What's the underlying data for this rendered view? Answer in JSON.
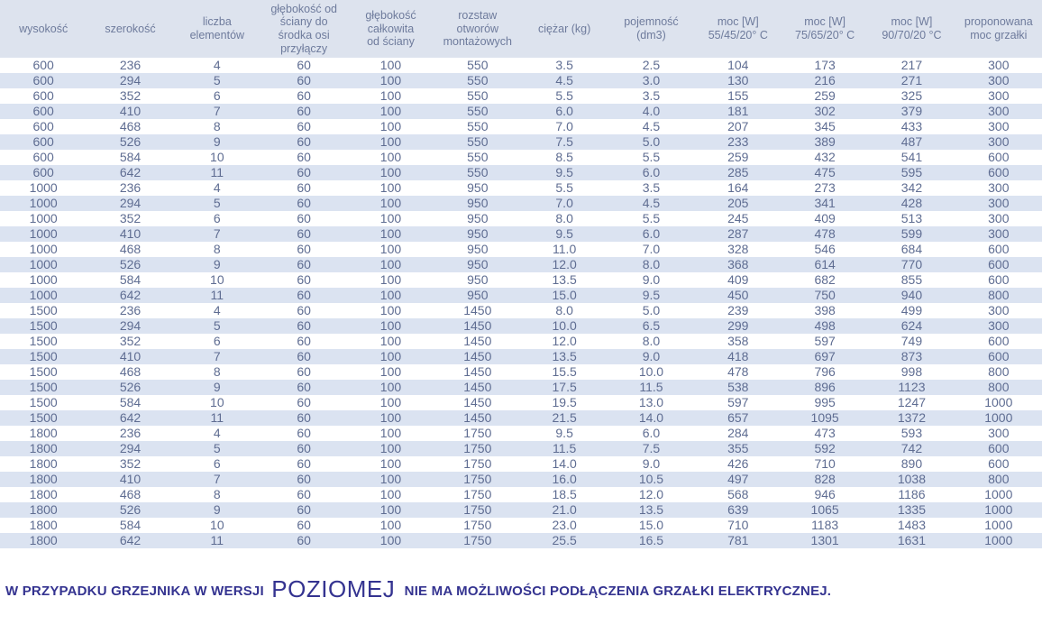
{
  "table": {
    "columns": [
      "wysokość",
      "szerokość",
      "liczba\nelementów",
      "głębokość od\nściany do\nśrodka osi\nprzyłączy",
      "głębokość\ncałkowita\nod ściany",
      "rozstaw\notworów\nmontażowych",
      "ciężar (kg)",
      "pojemność\n(dm3)",
      "moc [W]\n55/45/20° C",
      "moc [W]\n75/65/20° C",
      "moc [W]\n90/70/20 °C",
      "proponowana\nmoc grzałki"
    ],
    "rows": [
      [
        "600",
        "236",
        "4",
        "60",
        "100",
        "550",
        "3.5",
        "2.5",
        "104",
        "173",
        "217",
        "300"
      ],
      [
        "600",
        "294",
        "5",
        "60",
        "100",
        "550",
        "4.5",
        "3.0",
        "130",
        "216",
        "271",
        "300"
      ],
      [
        "600",
        "352",
        "6",
        "60",
        "100",
        "550",
        "5.5",
        "3.5",
        "155",
        "259",
        "325",
        "300"
      ],
      [
        "600",
        "410",
        "7",
        "60",
        "100",
        "550",
        "6.0",
        "4.0",
        "181",
        "302",
        "379",
        "300"
      ],
      [
        "600",
        "468",
        "8",
        "60",
        "100",
        "550",
        "7.0",
        "4.5",
        "207",
        "345",
        "433",
        "300"
      ],
      [
        "600",
        "526",
        "9",
        "60",
        "100",
        "550",
        "7.5",
        "5.0",
        "233",
        "389",
        "487",
        "300"
      ],
      [
        "600",
        "584",
        "10",
        "60",
        "100",
        "550",
        "8.5",
        "5.5",
        "259",
        "432",
        "541",
        "600"
      ],
      [
        "600",
        "642",
        "11",
        "60",
        "100",
        "550",
        "9.5",
        "6.0",
        "285",
        "475",
        "595",
        "600"
      ],
      [
        "1000",
        "236",
        "4",
        "60",
        "100",
        "950",
        "5.5",
        "3.5",
        "164",
        "273",
        "342",
        "300"
      ],
      [
        "1000",
        "294",
        "5",
        "60",
        "100",
        "950",
        "7.0",
        "4.5",
        "205",
        "341",
        "428",
        "300"
      ],
      [
        "1000",
        "352",
        "6",
        "60",
        "100",
        "950",
        "8.0",
        "5.5",
        "245",
        "409",
        "513",
        "300"
      ],
      [
        "1000",
        "410",
        "7",
        "60",
        "100",
        "950",
        "9.5",
        "6.0",
        "287",
        "478",
        "599",
        "300"
      ],
      [
        "1000",
        "468",
        "8",
        "60",
        "100",
        "950",
        "11.0",
        "7.0",
        "328",
        "546",
        "684",
        "600"
      ],
      [
        "1000",
        "526",
        "9",
        "60",
        "100",
        "950",
        "12.0",
        "8.0",
        "368",
        "614",
        "770",
        "600"
      ],
      [
        "1000",
        "584",
        "10",
        "60",
        "100",
        "950",
        "13.5",
        "9.0",
        "409",
        "682",
        "855",
        "600"
      ],
      [
        "1000",
        "642",
        "11",
        "60",
        "100",
        "950",
        "15.0",
        "9.5",
        "450",
        "750",
        "940",
        "800"
      ],
      [
        "1500",
        "236",
        "4",
        "60",
        "100",
        "1450",
        "8.0",
        "5.0",
        "239",
        "398",
        "499",
        "300"
      ],
      [
        "1500",
        "294",
        "5",
        "60",
        "100",
        "1450",
        "10.0",
        "6.5",
        "299",
        "498",
        "624",
        "300"
      ],
      [
        "1500",
        "352",
        "6",
        "60",
        "100",
        "1450",
        "12.0",
        "8.0",
        "358",
        "597",
        "749",
        "600"
      ],
      [
        "1500",
        "410",
        "7",
        "60",
        "100",
        "1450",
        "13.5",
        "9.0",
        "418",
        "697",
        "873",
        "600"
      ],
      [
        "1500",
        "468",
        "8",
        "60",
        "100",
        "1450",
        "15.5",
        "10.0",
        "478",
        "796",
        "998",
        "800"
      ],
      [
        "1500",
        "526",
        "9",
        "60",
        "100",
        "1450",
        "17.5",
        "11.5",
        "538",
        "896",
        "1123",
        "800"
      ],
      [
        "1500",
        "584",
        "10",
        "60",
        "100",
        "1450",
        "19.5",
        "13.0",
        "597",
        "995",
        "1247",
        "1000"
      ],
      [
        "1500",
        "642",
        "11",
        "60",
        "100",
        "1450",
        "21.5",
        "14.0",
        "657",
        "1095",
        "1372",
        "1000"
      ],
      [
        "1800",
        "236",
        "4",
        "60",
        "100",
        "1750",
        "9.5",
        "6.0",
        "284",
        "473",
        "593",
        "300"
      ],
      [
        "1800",
        "294",
        "5",
        "60",
        "100",
        "1750",
        "11.5",
        "7.5",
        "355",
        "592",
        "742",
        "600"
      ],
      [
        "1800",
        "352",
        "6",
        "60",
        "100",
        "1750",
        "14.0",
        "9.0",
        "426",
        "710",
        "890",
        "600"
      ],
      [
        "1800",
        "410",
        "7",
        "60",
        "100",
        "1750",
        "16.0",
        "10.5",
        "497",
        "828",
        "1038",
        "800"
      ],
      [
        "1800",
        "468",
        "8",
        "60",
        "100",
        "1750",
        "18.5",
        "12.0",
        "568",
        "946",
        "1186",
        "1000"
      ],
      [
        "1800",
        "526",
        "9",
        "60",
        "100",
        "1750",
        "21.0",
        "13.5",
        "639",
        "1065",
        "1335",
        "1000"
      ],
      [
        "1800",
        "584",
        "10",
        "60",
        "100",
        "1750",
        "23.0",
        "15.0",
        "710",
        "1183",
        "1483",
        "1000"
      ],
      [
        "1800",
        "642",
        "11",
        "60",
        "100",
        "1750",
        "25.5",
        "16.5",
        "781",
        "1301",
        "1631",
        "1000"
      ]
    ]
  },
  "footer": {
    "prefix": "W PRZYPADKU GRZEJNIKA W WERSJI",
    "emphasis": "POZIOMEJ",
    "suffix": "NIE MA MOŻLIWOŚCI PODŁĄCZENIA GRZAŁKI ELEKTRYCZNEJ."
  },
  "colors": {
    "header_bg": "#dde3ee",
    "stripe_bg": "#dbe3f1",
    "table_text": "#5f6d92",
    "header_text": "#6e7b9c",
    "footer_text": "#343390"
  }
}
